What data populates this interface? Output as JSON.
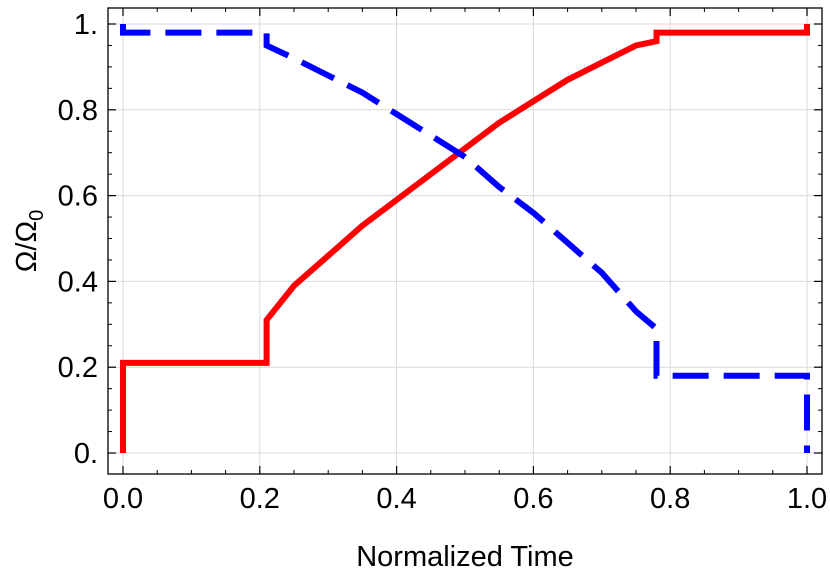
{
  "chart_data": {
    "type": "line",
    "title": "",
    "xlabel": "Normalized Time",
    "ylabel": {
      "base": "Ω/Ω",
      "subscript": "0"
    },
    "xlim": [
      0.0,
      1.0
    ],
    "ylim": [
      0.0,
      1.0
    ],
    "xticks": [
      "0.0",
      "0.2",
      "0.4",
      "0.6",
      "0.8",
      "1.0"
    ],
    "yticks": [
      "0.",
      "0.2",
      "0.4",
      "0.6",
      "0.8",
      "1."
    ],
    "grid": true,
    "legend": "none",
    "series": [
      {
        "color": "#ff0000",
        "style": "solid",
        "x": [
          0.0,
          0.0,
          0.21,
          0.21,
          0.25,
          0.3,
          0.35,
          0.4,
          0.45,
          0.5,
          0.55,
          0.6,
          0.65,
          0.7,
          0.75,
          0.78,
          0.78,
          1.0,
          1.0
        ],
        "y": [
          0.0,
          0.21,
          0.21,
          0.31,
          0.39,
          0.46,
          0.53,
          0.59,
          0.65,
          0.71,
          0.77,
          0.82,
          0.87,
          0.91,
          0.95,
          0.96,
          0.98,
          0.98,
          1.0
        ]
      },
      {
        "color": "#0000ff",
        "style": "dashed",
        "x": [
          0.0,
          0.0,
          0.21,
          0.21,
          0.25,
          0.3,
          0.35,
          0.4,
          0.45,
          0.5,
          0.55,
          0.6,
          0.65,
          0.7,
          0.75,
          0.78,
          0.78,
          1.0,
          1.0
        ],
        "y": [
          1.0,
          0.98,
          0.98,
          0.95,
          0.92,
          0.88,
          0.84,
          0.79,
          0.74,
          0.69,
          0.62,
          0.56,
          0.49,
          0.42,
          0.33,
          0.29,
          0.18,
          0.18,
          0.0
        ]
      }
    ]
  }
}
